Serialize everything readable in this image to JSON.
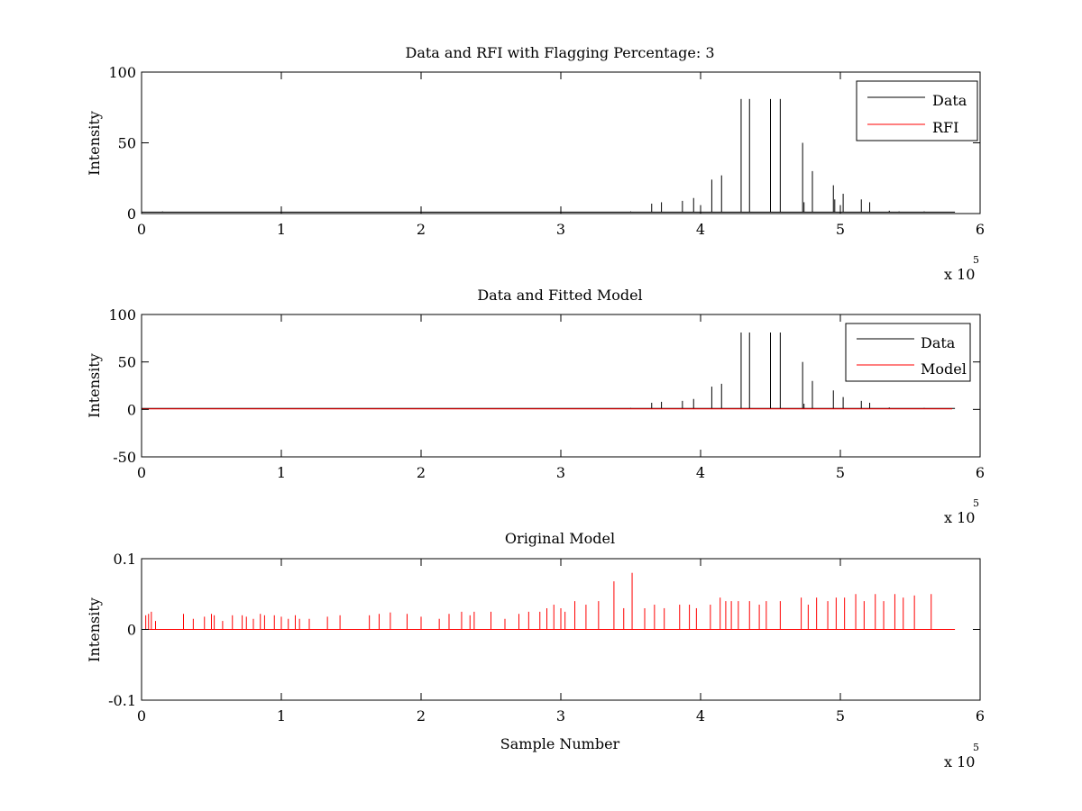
{
  "figure": {
    "background": "#ffffff"
  },
  "chart_data": [
    {
      "type": "line",
      "title": "Data and RFI with Flagging Percentage: 3",
      "xlabel": "",
      "ylabel": "Intensity",
      "xlim": [
        0,
        6
      ],
      "ylim": [
        0,
        100
      ],
      "x_exponent_label": "x 10",
      "x_exponent_power": "5",
      "xticks": [
        "0",
        "1",
        "2",
        "3",
        "4",
        "5",
        "6"
      ],
      "yticks": [
        "0",
        "50",
        "100"
      ],
      "grid": false,
      "legend_position": "top-right",
      "series": [
        {
          "name": "Data",
          "color": "#000000",
          "style": "spikes",
          "baseline": 1,
          "spikes": [
            [
              0.15,
              1.5
            ],
            [
              0.2,
              1.2
            ],
            [
              3.5,
              1.5
            ],
            [
              3.65,
              7
            ],
            [
              3.72,
              8
            ],
            [
              3.87,
              9
            ],
            [
              3.95,
              11
            ],
            [
              4.0,
              6
            ],
            [
              4.08,
              24
            ],
            [
              4.15,
              27
            ],
            [
              4.29,
              81
            ],
            [
              4.35,
              81
            ],
            [
              4.5,
              81
            ],
            [
              4.57,
              81
            ],
            [
              4.73,
              50
            ],
            [
              4.74,
              8
            ],
            [
              4.8,
              30
            ],
            [
              4.95,
              20
            ],
            [
              4.96,
              10
            ],
            [
              5.0,
              6
            ],
            [
              5.02,
              14
            ],
            [
              5.15,
              10
            ],
            [
              5.21,
              8
            ],
            [
              5.35,
              2
            ],
            [
              5.42,
              1.5
            ],
            [
              5.6,
              1.5
            ],
            [
              5.73,
              1.2
            ]
          ]
        },
        {
          "name": "RFI",
          "color": "#ff0000",
          "style": "spikes",
          "baseline": 0,
          "spikes": []
        }
      ]
    },
    {
      "type": "line",
      "title": "Data and Fitted Model",
      "xlabel": "",
      "ylabel": "Intensity",
      "xlim": [
        0,
        6
      ],
      "ylim": [
        -50,
        100
      ],
      "x_exponent_label": "x 10",
      "x_exponent_power": "5",
      "xticks": [
        "0",
        "1",
        "2",
        "3",
        "4",
        "5",
        "6"
      ],
      "yticks": [
        "-50",
        "0",
        "50",
        "100"
      ],
      "grid": false,
      "legend_position": "top-right",
      "series": [
        {
          "name": "Data",
          "color": "#000000",
          "style": "spikes",
          "baseline": 1,
          "spikes": [
            [
              3.5,
              1.5
            ],
            [
              3.65,
              7
            ],
            [
              3.72,
              8
            ],
            [
              3.87,
              9
            ],
            [
              3.95,
              11
            ],
            [
              4.08,
              24
            ],
            [
              4.15,
              27
            ],
            [
              4.29,
              81
            ],
            [
              4.35,
              81
            ],
            [
              4.5,
              81
            ],
            [
              4.57,
              81
            ],
            [
              4.73,
              50
            ],
            [
              4.74,
              6
            ],
            [
              4.8,
              30
            ],
            [
              4.95,
              20
            ],
            [
              5.02,
              13
            ],
            [
              5.15,
              9
            ],
            [
              5.21,
              7
            ],
            [
              5.35,
              2
            ],
            [
              5.6,
              1.5
            ]
          ]
        },
        {
          "name": "Model",
          "color": "#ff0000",
          "style": "line",
          "points": [
            [
              0,
              0.5
            ],
            [
              5.8,
              0.5
            ]
          ]
        }
      ]
    },
    {
      "type": "line",
      "title": "Original Model",
      "xlabel": "Sample Number",
      "ylabel": "Intensity",
      "xlim": [
        0,
        6
      ],
      "ylim": [
        -0.1,
        0.1
      ],
      "x_exponent_label": "x 10",
      "x_exponent_power": "5",
      "xticks": [
        "0",
        "1",
        "2",
        "3",
        "4",
        "5",
        "6"
      ],
      "yticks": [
        "-0.1",
        "0",
        "0.1"
      ],
      "grid": false,
      "legend_position": "none",
      "series": [
        {
          "name": "",
          "color": "#ff0000",
          "style": "spikes",
          "baseline": 0,
          "spikes": [
            [
              0.03,
              0.02
            ],
            [
              0.05,
              0.022
            ],
            [
              0.07,
              0.025
            ],
            [
              0.1,
              0.012
            ],
            [
              0.3,
              0.022
            ],
            [
              0.37,
              0.015
            ],
            [
              0.45,
              0.018
            ],
            [
              0.5,
              0.022
            ],
            [
              0.52,
              0.02
            ],
            [
              0.58,
              0.012
            ],
            [
              0.65,
              0.02
            ],
            [
              0.72,
              0.02
            ],
            [
              0.75,
              0.018
            ],
            [
              0.8,
              0.015
            ],
            [
              0.85,
              0.022
            ],
            [
              0.88,
              0.02
            ],
            [
              0.95,
              0.02
            ],
            [
              1.0,
              0.018
            ],
            [
              1.05,
              0.015
            ],
            [
              1.1,
              0.02
            ],
            [
              1.13,
              0.015
            ],
            [
              1.2,
              0.015
            ],
            [
              1.33,
              0.018
            ],
            [
              1.42,
              0.02
            ],
            [
              1.63,
              0.02
            ],
            [
              1.7,
              0.022
            ],
            [
              1.78,
              0.024
            ],
            [
              1.9,
              0.022
            ],
            [
              2.0,
              0.018
            ],
            [
              2.13,
              0.015
            ],
            [
              2.2,
              0.022
            ],
            [
              2.29,
              0.025
            ],
            [
              2.35,
              0.02
            ],
            [
              2.38,
              0.025
            ],
            [
              2.5,
              0.025
            ],
            [
              2.6,
              0.015
            ],
            [
              2.7,
              0.022
            ],
            [
              2.77,
              0.025
            ],
            [
              2.85,
              0.025
            ],
            [
              2.9,
              0.03
            ],
            [
              2.95,
              0.035
            ],
            [
              3.0,
              0.03
            ],
            [
              3.03,
              0.025
            ],
            [
              3.1,
              0.04
            ],
            [
              3.18,
              0.035
            ],
            [
              3.27,
              0.04
            ],
            [
              3.38,
              0.068
            ],
            [
              3.45,
              0.03
            ],
            [
              3.51,
              0.08
            ],
            [
              3.6,
              0.03
            ],
            [
              3.67,
              0.035
            ],
            [
              3.74,
              0.03
            ],
            [
              3.85,
              0.035
            ],
            [
              3.92,
              0.035
            ],
            [
              3.97,
              0.03
            ],
            [
              4.07,
              0.035
            ],
            [
              4.14,
              0.045
            ],
            [
              4.18,
              0.04
            ],
            [
              4.22,
              0.04
            ],
            [
              4.27,
              0.04
            ],
            [
              4.35,
              0.04
            ],
            [
              4.42,
              0.035
            ],
            [
              4.47,
              0.04
            ],
            [
              4.57,
              0.04
            ],
            [
              4.72,
              0.045
            ],
            [
              4.77,
              0.035
            ],
            [
              4.83,
              0.045
            ],
            [
              4.91,
              0.04
            ],
            [
              4.97,
              0.045
            ],
            [
              5.03,
              0.045
            ],
            [
              5.11,
              0.05
            ],
            [
              5.17,
              0.04
            ],
            [
              5.25,
              0.05
            ],
            [
              5.31,
              0.04
            ],
            [
              5.39,
              0.05
            ],
            [
              5.45,
              0.045
            ],
            [
              5.53,
              0.048
            ],
            [
              5.65,
              0.05
            ]
          ]
        }
      ]
    }
  ]
}
